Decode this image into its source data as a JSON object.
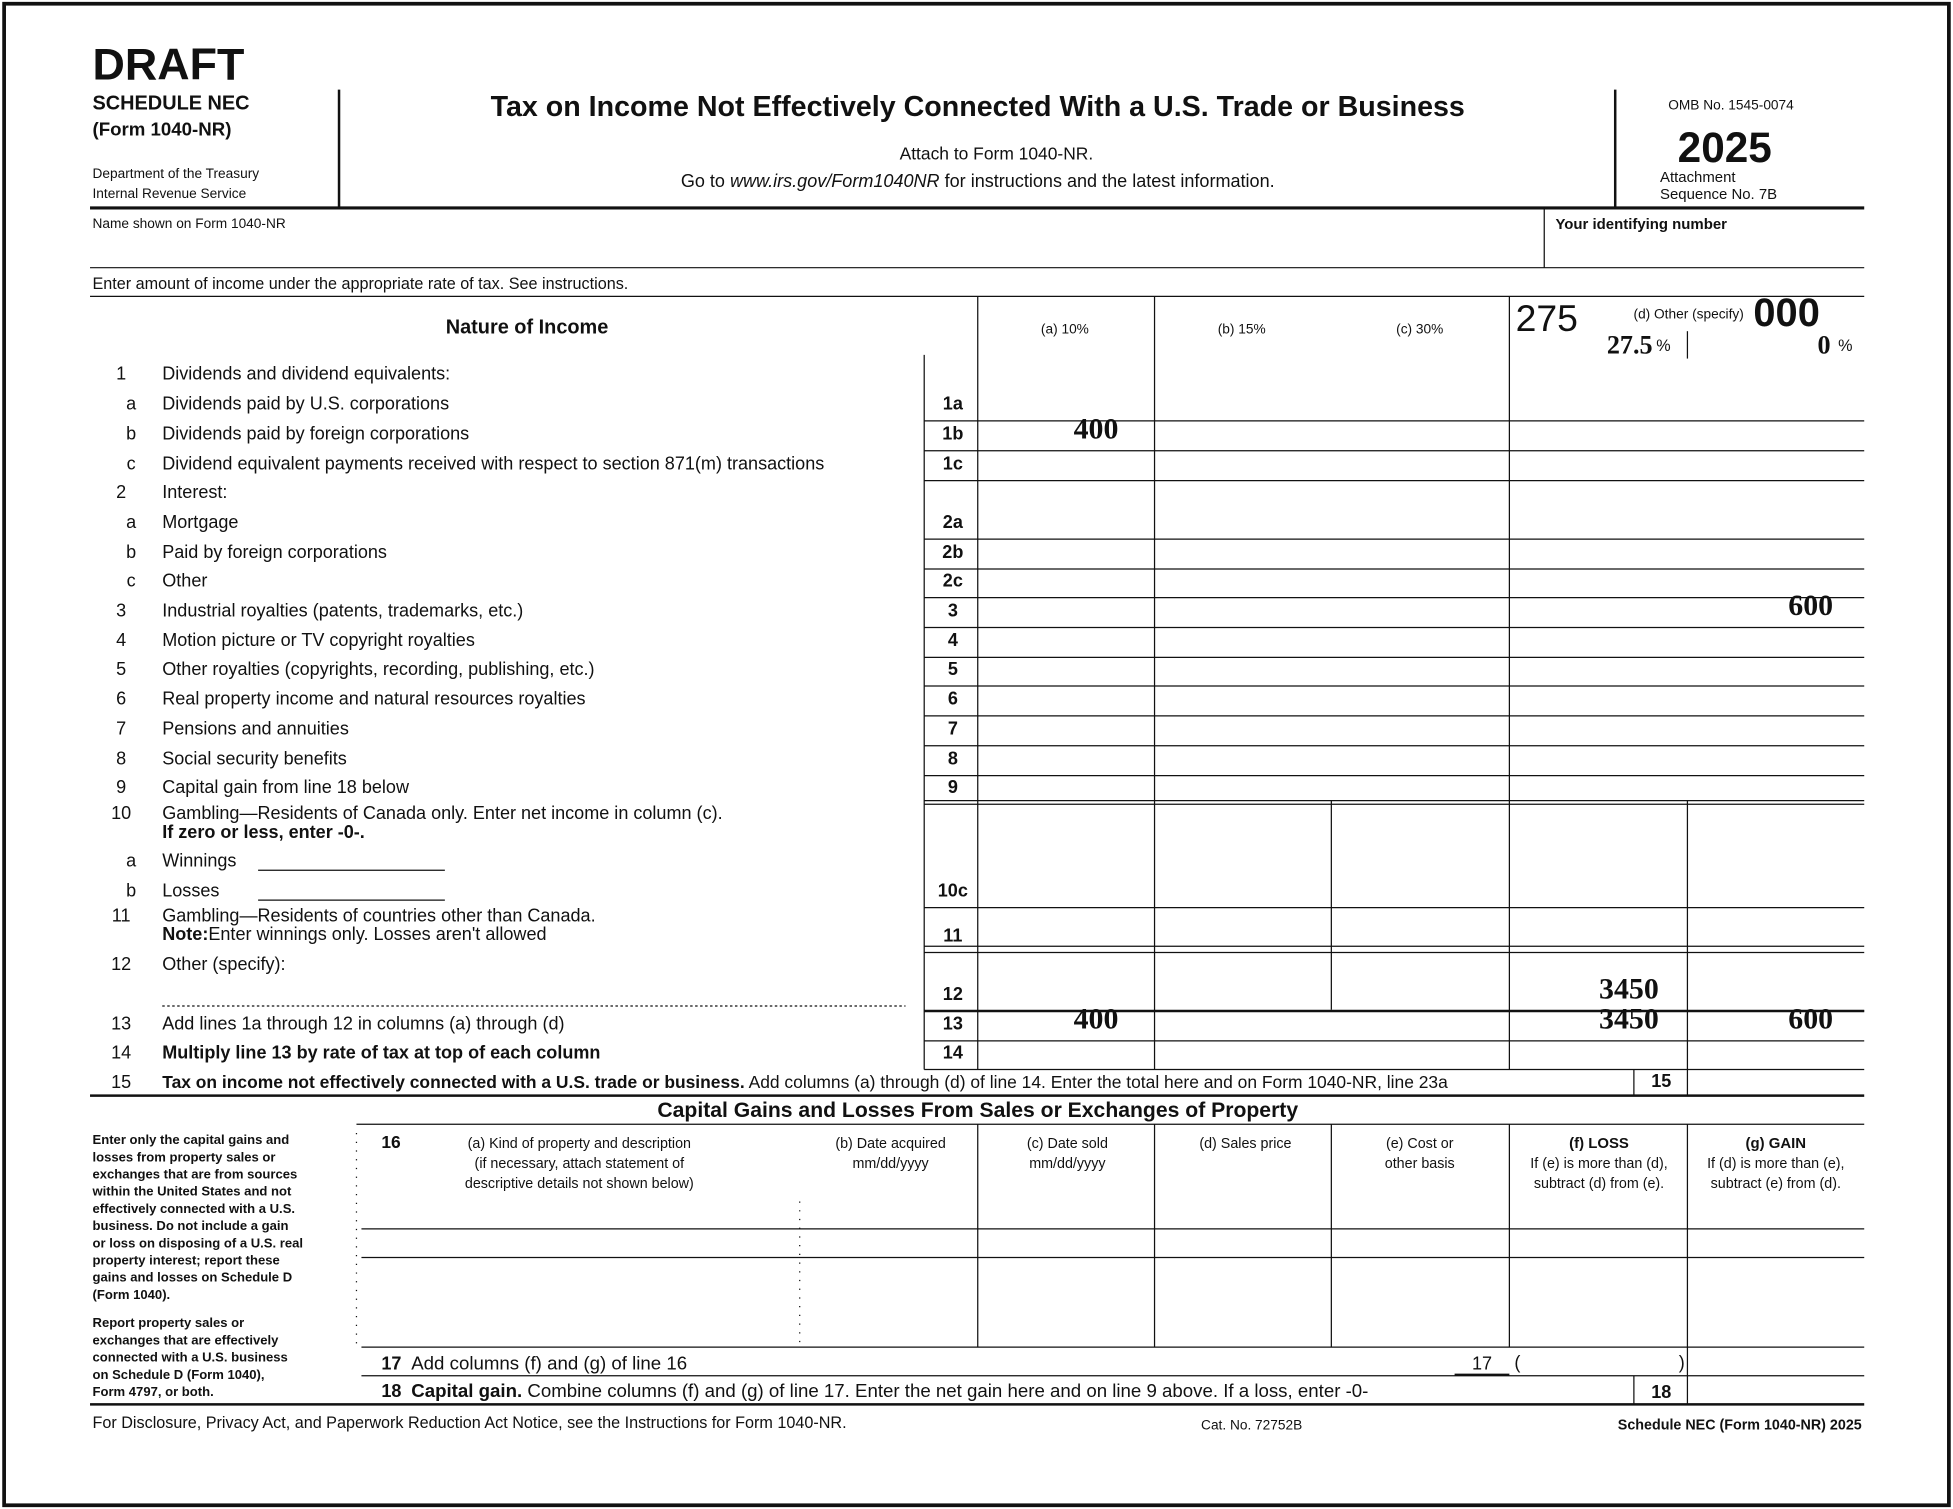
{
  "header": {
    "draft": "DRAFT",
    "schedule": "SCHEDULE NEC",
    "form": "(Form 1040-NR)",
    "dept1": "Department of the Treasury",
    "dept2": "Internal Revenue Service",
    "title": "Tax on Income Not Effectively Connected With a U.S. Trade or Business",
    "attach": "Attach to Form 1040-NR.",
    "goto": [
      "Go to ",
      "www.irs.gov/Form1040NR",
      " for instructions and the latest information."
    ],
    "omb": "OMB No. 1545-0074",
    "year": "2025",
    "attachment": "Attachment",
    "sequence": "Sequence No. 7B"
  },
  "name_label": "Name shown on Form 1040-NR",
  "id_label": "Your identifying number",
  "instruction": "Enter amount of income under the appropriate rate of tax. See instructions.",
  "columns": {
    "nature": "Nature of Income",
    "a": "(a) 10%",
    "b": "(b) 15%",
    "c": "(c) 30%",
    "d": "(d) Other (specify)",
    "overlay1": "275",
    "overlay2": "000",
    "d1_rate": "27.5",
    "d1_pct": "%",
    "d2_rate": "0",
    "d2_pct": "%"
  },
  "rows": [
    {
      "num": "1",
      "text": "Dividends and dividend equivalents:"
    },
    {
      "letter": "a",
      "text": "Dividends paid by U.S. corporations",
      "box": "1a"
    },
    {
      "letter": "b",
      "text": "Dividends paid by foreign corporations",
      "box": "1b",
      "entries": {
        "a": 400
      }
    },
    {
      "letter": "c",
      "text": "Dividend equivalent payments received with respect to section 871(m) transactions",
      "box": "1c"
    },
    {
      "num": "2",
      "text": "Interest:"
    },
    {
      "letter": "a",
      "text": "Mortgage",
      "box": "2a"
    },
    {
      "letter": "b",
      "text": "Paid by foreign corporations",
      "box": "2b"
    },
    {
      "letter": "c",
      "text": "Other",
      "box": "2c"
    },
    {
      "num": "3",
      "text": "Industrial royalties (patents, trademarks, etc.)",
      "box": "3",
      "entries": {
        "d2": 600
      }
    },
    {
      "num": "4",
      "text": "Motion picture or TV copyright royalties",
      "box": "4"
    },
    {
      "num": "5",
      "text": "Other royalties (copyrights, recording, publishing, etc.)",
      "box": "5"
    },
    {
      "num": "6",
      "text": "Real property income and natural resources royalties",
      "box": "6"
    },
    {
      "num": "7",
      "text": "Pensions and annuities",
      "box": "7"
    },
    {
      "num": "8",
      "text": "Social security benefits",
      "box": "8"
    },
    {
      "num": "9",
      "text": "Capital gain from line 18 below",
      "box": "9"
    },
    {
      "num": "10",
      "text": "Gambling—Residents of Canada only. Enter net income in column (c).",
      "bold": "If zero or less, enter -0-."
    },
    {
      "letter": "a",
      "text": "Winnings"
    },
    {
      "letter": "b",
      "text": "Losses",
      "box": "10c"
    },
    {
      "num": "11",
      "text": "Gambling—Residents of countries other than Canada.",
      "bold": "Note:",
      "text2": "Enter winnings only. Losses aren't allowed",
      "box": "11"
    },
    {
      "num": "12",
      "text": "Other (specify):",
      "box": "12",
      "entries": {
        "d1": 3450
      }
    },
    {
      "num": "13",
      "text": "Add lines 1a through 12 in columns (a) through (d)",
      "box": "13",
      "entries": {
        "a": 400,
        "d1": 3450,
        "d2": 600
      }
    },
    {
      "num": "14",
      "bold": "Multiply line 13 by rate of tax at top of each column",
      "box": "14"
    }
  ],
  "line15": {
    "num": "15",
    "bold": "Tax on income not effectively connected with a U.S. trade or business.",
    "text": " Add columns (a) through (d) of line 14. Enter the total here and on Form 1040-NR, line 23a",
    "box": "15"
  },
  "capital": {
    "heading": "Capital Gains and Losses From Sales or Exchanges of Property",
    "note1": [
      "Enter only the capital gains and",
      "losses from property sales or",
      "exchanges that are from sources",
      "within the United States and not",
      "effectively connected with a U.S.",
      "business. Do not include a gain",
      "or loss on disposing of a U.S. real",
      "property interest; report these",
      "gains and losses on Schedule D",
      "(Form 1040)."
    ],
    "note2": [
      "Report property sales or",
      "exchanges that are effectively",
      "connected with a U.S. business",
      "on Schedule D (Form 1040),",
      "Form 4797, or both."
    ],
    "line16": "16",
    "col_a": [
      "(a) Kind of property and description",
      "(if necessary, attach statement of",
      "descriptive details not shown below)"
    ],
    "col_b": [
      "(b) Date acquired",
      "mm/dd/yyyy"
    ],
    "col_c": [
      "(c) Date sold",
      "mm/dd/yyyy"
    ],
    "col_d": [
      "(d) Sales price"
    ],
    "col_e": [
      "(e) Cost or",
      "other basis"
    ],
    "col_f": [
      "(f) LOSS",
      "If (e) is more than (d),",
      "subtract (d) from (e)."
    ],
    "col_g": [
      "(g) GAIN",
      "If (d) is more than (e),",
      "subtract (e) from (d)."
    ],
    "line17": {
      "num": "17",
      "text": "Add columns (f) and (g) of line 16",
      "box": "17",
      "open": "(",
      "close": ")"
    },
    "line18": {
      "num": "18",
      "bold": "Capital gain.",
      "text": " Combine columns (f) and (g) of line 17. Enter the net gain here and on line 9 above. If a loss, enter -0-",
      "box": "18"
    }
  },
  "footer": {
    "notice": "For Disclosure, Privacy Act, and Paperwork Reduction Act Notice, see the Instructions for Form 1040-NR.",
    "cat": "Cat. No. 72752B",
    "form": "Schedule NEC (Form 1040-NR) 2025"
  }
}
